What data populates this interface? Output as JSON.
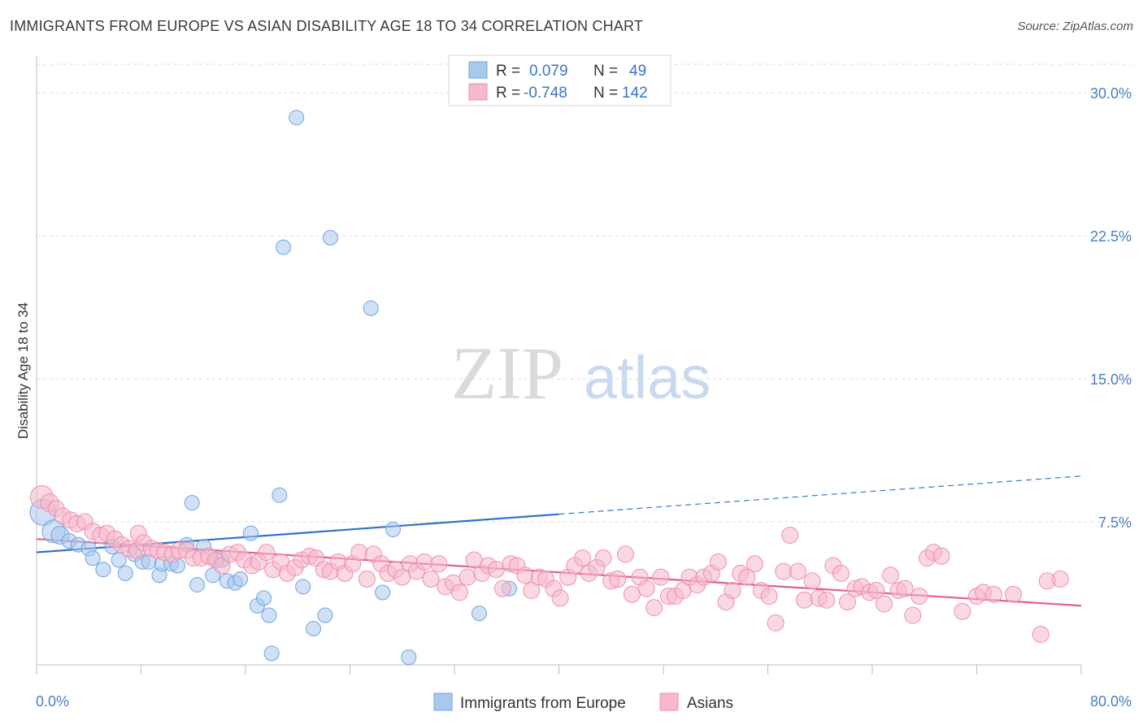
{
  "header": {
    "title": "IMMIGRANTS FROM EUROPE VS ASIAN DISABILITY AGE 18 TO 34 CORRELATION CHART",
    "source": "Source: ZipAtlas.com"
  },
  "watermark": {
    "zip": "ZIP",
    "atlas": "atlas"
  },
  "legend": {
    "r_label": "R =",
    "n_label": "N =",
    "rows": [
      {
        "r": "0.079",
        "n": "49",
        "color": "#a9c8ee"
      },
      {
        "r": "-0.748",
        "n": "142",
        "color": "#f6b8cb"
      }
    ]
  },
  "chart_data": {
    "type": "scatter",
    "title": "IMMIGRANTS FROM EUROPE VS ASIAN DISABILITY AGE 18 TO 34 CORRELATION CHART",
    "ylabel": "Disability Age 18 to 34",
    "xlabel": "",
    "xlim": [
      0,
      80
    ],
    "ylim": [
      0,
      31.5
    ],
    "x_tick_labels": [
      "0.0%",
      "80.0%"
    ],
    "y_ticks": [
      7.5,
      15.0,
      22.5,
      30.0
    ],
    "y_tick_labels": [
      "7.5%",
      "15.0%",
      "22.5%",
      "30.0%"
    ],
    "grid": "horizontal dashed",
    "legend_position": "top-center",
    "series": [
      {
        "name": "Immigrants from Europe",
        "color": "#6fa3e0",
        "fill": "#a9c8ee",
        "trend": {
          "x0": 0,
          "y0": 5.9,
          "x1": 40,
          "y1": 7.9,
          "dash_to_x": 80,
          "dash_to_y": 9.9,
          "color": "#2f6fcb"
        },
        "points": [
          [
            0.5,
            8.0,
            16
          ],
          [
            1.3,
            7.0,
            14
          ],
          [
            1.8,
            6.8,
            11
          ],
          [
            2.5,
            6.5,
            9
          ],
          [
            3.2,
            6.3,
            9
          ],
          [
            4.0,
            6.1,
            9
          ],
          [
            4.3,
            5.6,
            9
          ],
          [
            5.1,
            5.0,
            9
          ],
          [
            5.8,
            6.2,
            9
          ],
          [
            6.3,
            5.5,
            9
          ],
          [
            6.8,
            4.8,
            9
          ],
          [
            7.5,
            5.8,
            9
          ],
          [
            8.1,
            5.4,
            9
          ],
          [
            8.6,
            5.4,
            9
          ],
          [
            9.4,
            4.7,
            9
          ],
          [
            9.6,
            5.3,
            9
          ],
          [
            10.3,
            5.3,
            9
          ],
          [
            10.8,
            5.2,
            9
          ],
          [
            11.5,
            6.3,
            9
          ],
          [
            11.9,
            8.5,
            9
          ],
          [
            12.3,
            4.2,
            9
          ],
          [
            12.8,
            6.2,
            9
          ],
          [
            13.5,
            4.7,
            9
          ],
          [
            13.8,
            5.5,
            9
          ],
          [
            14.2,
            5.5,
            9
          ],
          [
            14.6,
            4.4,
            9
          ],
          [
            15.2,
            4.3,
            9
          ],
          [
            15.6,
            4.5,
            9
          ],
          [
            16.4,
            6.9,
            9
          ],
          [
            16.9,
            3.1,
            9
          ],
          [
            17.4,
            3.5,
            9
          ],
          [
            17.8,
            2.6,
            9
          ],
          [
            18.0,
            0.6,
            9
          ],
          [
            18.6,
            8.9,
            9
          ],
          [
            18.9,
            21.9,
            9
          ],
          [
            19.9,
            28.7,
            9
          ],
          [
            20.4,
            4.1,
            9
          ],
          [
            21.2,
            1.9,
            9
          ],
          [
            22.1,
            2.6,
            9
          ],
          [
            22.5,
            22.4,
            9
          ],
          [
            25.6,
            18.7,
            9
          ],
          [
            26.5,
            3.8,
            9
          ],
          [
            27.3,
            7.1,
            9
          ],
          [
            28.5,
            0.4,
            9
          ],
          [
            33.9,
            2.7,
            9
          ],
          [
            36.2,
            4.0,
            9
          ]
        ]
      },
      {
        "name": "Asians",
        "color": "#ef8fae",
        "fill": "#f6b8cb",
        "trend": {
          "x0": 0,
          "y0": 6.6,
          "x1": 80,
          "y1": 3.1,
          "color": "#e35e8e"
        },
        "points": [
          [
            0.4,
            8.8,
            14
          ],
          [
            1.0,
            8.5,
            11
          ],
          [
            1.5,
            8.2,
            10
          ],
          [
            2.0,
            7.8,
            10
          ],
          [
            2.6,
            7.6,
            10
          ],
          [
            3.1,
            7.4,
            10
          ],
          [
            3.7,
            7.5,
            10
          ],
          [
            4.3,
            7.0,
            10
          ],
          [
            4.9,
            6.8,
            10
          ],
          [
            5.4,
            6.9,
            10
          ],
          [
            6.0,
            6.6,
            10
          ],
          [
            6.5,
            6.3,
            10
          ],
          [
            7.1,
            6.1,
            10
          ],
          [
            7.7,
            6.0,
            10
          ],
          [
            7.8,
            6.9,
            10
          ],
          [
            8.2,
            6.4,
            10
          ],
          [
            8.8,
            6.1,
            10
          ],
          [
            9.3,
            6.0,
            10
          ],
          [
            9.8,
            5.9,
            10
          ],
          [
            10.4,
            5.8,
            10
          ],
          [
            10.9,
            6.0,
            10
          ],
          [
            11.5,
            6.0,
            10
          ],
          [
            12.0,
            5.6,
            10
          ],
          [
            12.6,
            5.6,
            10
          ],
          [
            13.2,
            5.7,
            10
          ],
          [
            13.7,
            5.5,
            10
          ],
          [
            14.2,
            5.2,
            10
          ],
          [
            14.8,
            5.8,
            10
          ],
          [
            15.4,
            5.9,
            10
          ],
          [
            15.9,
            5.5,
            10
          ],
          [
            16.5,
            5.2,
            10
          ],
          [
            17.0,
            5.4,
            10
          ],
          [
            17.6,
            5.9,
            10
          ],
          [
            18.1,
            5.0,
            10
          ],
          [
            18.7,
            5.4,
            10
          ],
          [
            19.2,
            4.8,
            10
          ],
          [
            19.8,
            5.1,
            10
          ],
          [
            20.3,
            5.5,
            10
          ],
          [
            20.9,
            5.7,
            10
          ],
          [
            21.4,
            5.6,
            10
          ],
          [
            22.0,
            5.0,
            10
          ],
          [
            22.5,
            4.9,
            10
          ],
          [
            23.1,
            5.4,
            10
          ],
          [
            23.6,
            4.8,
            10
          ],
          [
            24.2,
            5.3,
            10
          ],
          [
            24.7,
            5.9,
            10
          ],
          [
            25.3,
            4.5,
            10
          ],
          [
            25.8,
            5.8,
            10
          ],
          [
            26.4,
            5.3,
            10
          ],
          [
            26.9,
            4.8,
            10
          ],
          [
            27.5,
            5.0,
            10
          ],
          [
            28.0,
            4.6,
            10
          ],
          [
            28.6,
            5.3,
            10
          ],
          [
            29.1,
            4.9,
            10
          ],
          [
            29.7,
            5.4,
            10
          ],
          [
            30.2,
            4.5,
            10
          ],
          [
            30.8,
            5.3,
            10
          ],
          [
            31.3,
            4.1,
            10
          ],
          [
            31.9,
            4.3,
            10
          ],
          [
            32.4,
            3.8,
            10
          ],
          [
            33.0,
            4.6,
            10
          ],
          [
            33.5,
            5.5,
            10
          ],
          [
            34.1,
            4.8,
            10
          ],
          [
            34.6,
            5.2,
            10
          ],
          [
            35.2,
            5.0,
            10
          ],
          [
            35.7,
            4.0,
            10
          ],
          [
            36.3,
            5.3,
            10
          ],
          [
            36.8,
            5.2,
            10
          ],
          [
            37.4,
            4.7,
            10
          ],
          [
            37.9,
            3.9,
            10
          ],
          [
            38.5,
            4.6,
            10
          ],
          [
            39.0,
            4.5,
            10
          ],
          [
            39.6,
            4.0,
            10
          ],
          [
            40.1,
            3.5,
            10
          ],
          [
            40.7,
            4.6,
            10
          ],
          [
            41.2,
            5.2,
            10
          ],
          [
            41.8,
            5.6,
            10
          ],
          [
            42.3,
            4.8,
            10
          ],
          [
            42.9,
            5.1,
            10
          ],
          [
            43.4,
            5.6,
            10
          ],
          [
            44.0,
            4.4,
            10
          ],
          [
            44.5,
            4.5,
            10
          ],
          [
            45.1,
            5.8,
            10
          ],
          [
            45.6,
            3.7,
            10
          ],
          [
            46.2,
            4.6,
            10
          ],
          [
            46.7,
            4.0,
            10
          ],
          [
            47.3,
            3.0,
            10
          ],
          [
            47.8,
            4.6,
            10
          ],
          [
            48.4,
            3.6,
            10
          ],
          [
            48.9,
            3.6,
            10
          ],
          [
            49.5,
            3.9,
            10
          ],
          [
            50.0,
            4.6,
            10
          ],
          [
            50.6,
            4.2,
            10
          ],
          [
            51.1,
            4.6,
            10
          ],
          [
            51.7,
            4.8,
            10
          ],
          [
            52.2,
            5.4,
            10
          ],
          [
            52.8,
            3.3,
            10
          ],
          [
            53.3,
            3.9,
            10
          ],
          [
            53.9,
            4.8,
            10
          ],
          [
            54.4,
            4.6,
            10
          ],
          [
            55.0,
            5.3,
            10
          ],
          [
            55.5,
            3.9,
            10
          ],
          [
            56.1,
            3.6,
            10
          ],
          [
            56.6,
            2.2,
            10
          ],
          [
            57.2,
            4.9,
            10
          ],
          [
            57.7,
            6.8,
            10
          ],
          [
            58.3,
            4.9,
            10
          ],
          [
            58.8,
            3.4,
            10
          ],
          [
            59.4,
            4.4,
            10
          ],
          [
            59.9,
            3.5,
            10
          ],
          [
            60.5,
            3.4,
            10
          ],
          [
            61.0,
            5.2,
            10
          ],
          [
            61.6,
            4.8,
            10
          ],
          [
            62.1,
            3.3,
            10
          ],
          [
            62.7,
            4.0,
            10
          ],
          [
            63.2,
            4.1,
            10
          ],
          [
            63.8,
            3.8,
            10
          ],
          [
            64.3,
            3.9,
            10
          ],
          [
            64.9,
            3.2,
            10
          ],
          [
            65.4,
            4.7,
            10
          ],
          [
            66.0,
            3.9,
            10
          ],
          [
            66.5,
            4.0,
            10
          ],
          [
            67.1,
            2.6,
            10
          ],
          [
            67.6,
            3.6,
            10
          ],
          [
            68.2,
            5.6,
            10
          ],
          [
            68.7,
            5.9,
            10
          ],
          [
            69.3,
            5.7,
            10
          ],
          [
            70.9,
            2.8,
            10
          ],
          [
            72.0,
            3.6,
            10
          ],
          [
            72.5,
            3.8,
            10
          ],
          [
            73.3,
            3.7,
            10
          ],
          [
            74.8,
            3.7,
            10
          ],
          [
            76.9,
            1.6,
            10
          ],
          [
            77.4,
            4.4,
            10
          ],
          [
            78.4,
            4.5,
            10
          ]
        ]
      }
    ]
  }
}
